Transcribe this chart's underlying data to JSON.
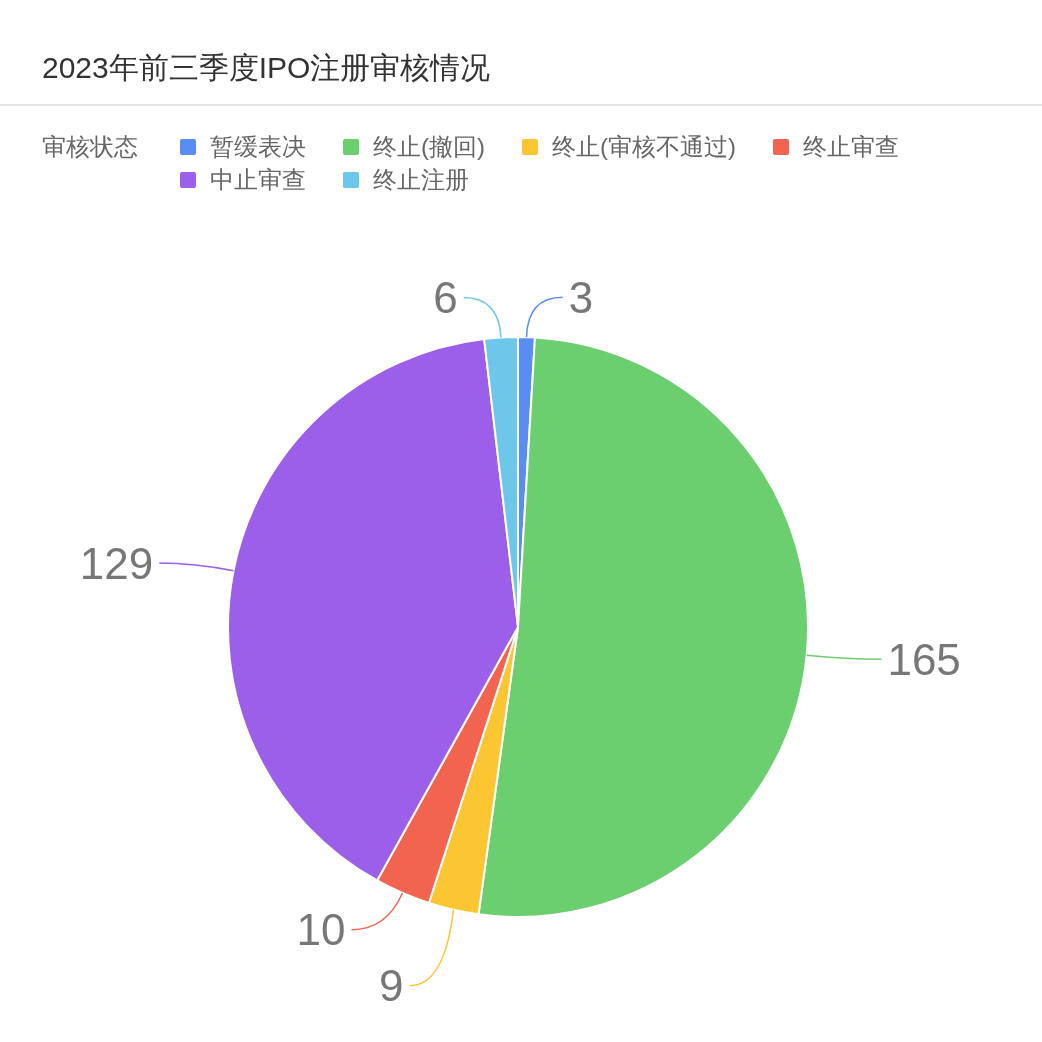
{
  "chart_data": {
    "type": "pie",
    "title": "2023年前三季度IPO注册审核情况",
    "legend_title": "审核状态",
    "categories": [
      "暂缓表决",
      "终止(撤回)",
      "终止(审核不通过)",
      "终止审查",
      "中止审查",
      "终止注册"
    ],
    "values": [
      3,
      165,
      9,
      10,
      129,
      6
    ],
    "colors": [
      "#5a8df2",
      "#6ccf6f",
      "#fbc632",
      "#f2644f",
      "#9b5fe9",
      "#6cc7ea"
    ],
    "legend": "top left",
    "data_labels": true
  }
}
